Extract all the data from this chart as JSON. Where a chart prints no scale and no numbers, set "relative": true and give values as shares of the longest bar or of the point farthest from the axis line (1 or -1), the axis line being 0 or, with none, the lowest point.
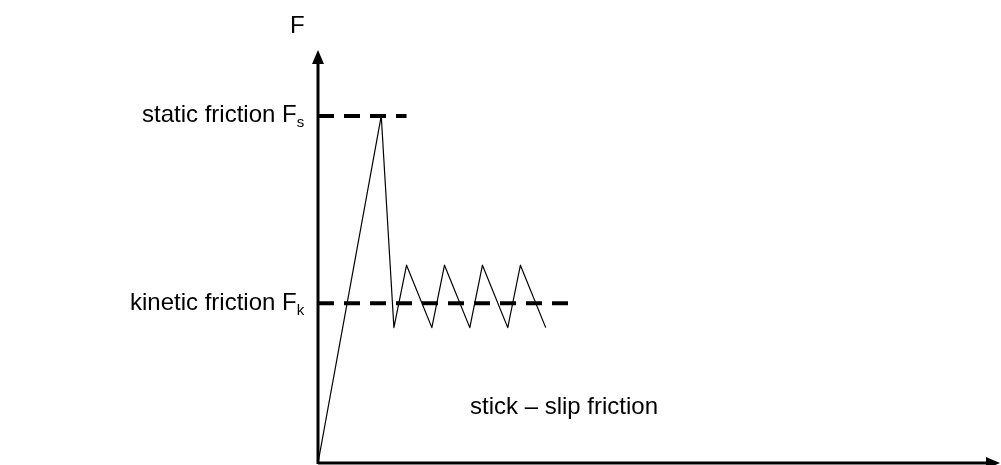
{
  "chart_data": {
    "type": "line",
    "relative": true,
    "ylabel": "F",
    "tick_labels": false,
    "legend": false,
    "marker": "none",
    "categories": [
      null,
      null,
      null,
      null,
      null,
      null,
      null,
      null,
      null,
      null,
      null,
      null,
      null,
      null,
      null,
      null,
      null,
      null,
      null,
      null,
      null
    ],
    "series": [
      {
        "color": "#000000",
        "line_style": "solid",
        "values": [
          0,
          null,
          null,
          null,
          null,
          1,
          0.39,
          0.57,
          null,
          0.39,
          0.57,
          null,
          0.39,
          0.57,
          null,
          0.39,
          0.57,
          null,
          0.39,
          null,
          null
        ]
      },
      {
        "name": "static friction F$_{s}$",
        "color": "#000000",
        "line_style": "dashed",
        "values": [
          1,
          null,
          null,
          null,
          null,
          null,
          null,
          1,
          null,
          null,
          null,
          null,
          null,
          null,
          null,
          null,
          null,
          null,
          null,
          null,
          null
        ]
      },
      {
        "name": "kinetic friction F$_{k}$",
        "color": "#000000",
        "line_style": "dashed",
        "values": [
          0.46,
          null,
          null,
          null,
          null,
          null,
          null,
          null,
          null,
          null,
          null,
          null,
          null,
          null,
          null,
          null,
          null,
          null,
          null,
          null,
          0.46
        ]
      }
    ],
    "annotations": [
      "stick – slip friction"
    ]
  }
}
